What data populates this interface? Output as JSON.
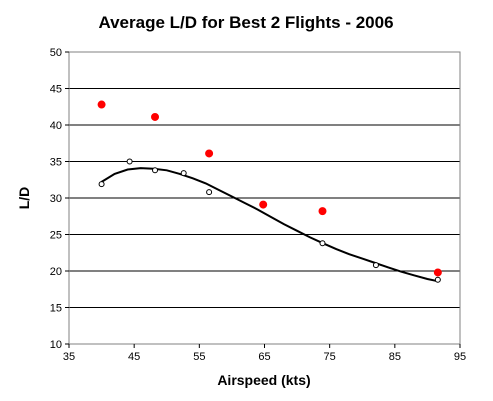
{
  "chart_data": {
    "type": "scatter",
    "title": "Average L/D for Best 2 Flights -  2006",
    "xlabel": "Airspeed (kts)",
    "ylabel": "L/D",
    "xlim": [
      35,
      95
    ],
    "ylim": [
      10,
      50
    ],
    "x_ticks": [
      "35",
      "45",
      "55",
      "65",
      "75",
      "85",
      "95"
    ],
    "y_ticks": [
      "10",
      "15",
      "20",
      "25",
      "30",
      "35",
      "40",
      "45",
      "50"
    ],
    "grid": "horizontal",
    "legend": "none",
    "colors": {
      "best": "#ff0000",
      "average": "#ffffff",
      "trend": "#000000",
      "frame": "#808080"
    },
    "series": [
      {
        "marker": "filled-circle",
        "points": [
          {
            "x": 40,
            "y": 42.8
          },
          {
            "x": 48.2,
            "y": 41.1
          },
          {
            "x": 56.5,
            "y": 36.1
          },
          {
            "x": 64.8,
            "y": 29.1
          },
          {
            "x": 73.9,
            "y": 28.2
          },
          {
            "x": 91.6,
            "y": 19.8
          }
        ]
      },
      {
        "marker": "open-circle",
        "points": [
          {
            "x": 40,
            "y": 31.9
          },
          {
            "x": 44.3,
            "y": 35.0
          },
          {
            "x": 48.2,
            "y": 33.8
          },
          {
            "x": 52.6,
            "y": 33.4
          },
          {
            "x": 56.5,
            "y": 30.8
          },
          {
            "x": 64.8,
            "y": 29.0
          },
          {
            "x": 73.9,
            "y": 23.8
          },
          {
            "x": 82.1,
            "y": 20.8
          },
          {
            "x": 91.6,
            "y": 18.8
          }
        ]
      },
      {
        "marker": "trend-line",
        "points": [
          {
            "x": 40,
            "y": 32.2
          },
          {
            "x": 42,
            "y": 33.3
          },
          {
            "x": 44,
            "y": 33.9
          },
          {
            "x": 46,
            "y": 34.1
          },
          {
            "x": 48,
            "y": 34.0
          },
          {
            "x": 50,
            "y": 33.8
          },
          {
            "x": 52,
            "y": 33.3
          },
          {
            "x": 54,
            "y": 32.7
          },
          {
            "x": 56,
            "y": 32.0
          },
          {
            "x": 58,
            "y": 31.1
          },
          {
            "x": 60,
            "y": 30.2
          },
          {
            "x": 62,
            "y": 29.3
          },
          {
            "x": 64,
            "y": 28.4
          },
          {
            "x": 66,
            "y": 27.4
          },
          {
            "x": 68,
            "y": 26.4
          },
          {
            "x": 70,
            "y": 25.5
          },
          {
            "x": 72,
            "y": 24.6
          },
          {
            "x": 74,
            "y": 23.8
          },
          {
            "x": 76,
            "y": 23.0
          },
          {
            "x": 78,
            "y": 22.3
          },
          {
            "x": 80,
            "y": 21.7
          },
          {
            "x": 82,
            "y": 21.1
          },
          {
            "x": 84,
            "y": 20.5
          },
          {
            "x": 86,
            "y": 19.9
          },
          {
            "x": 88,
            "y": 19.4
          },
          {
            "x": 90,
            "y": 18.9
          },
          {
            "x": 91.6,
            "y": 18.6
          }
        ]
      }
    ]
  }
}
